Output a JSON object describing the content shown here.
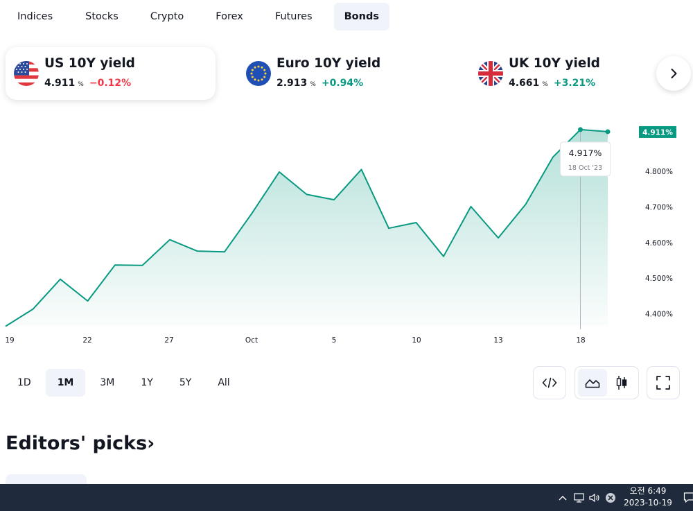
{
  "tabs": [
    "Indices",
    "Stocks",
    "Crypto",
    "Forex",
    "Futures",
    "Bonds"
  ],
  "active_tab": "Bonds",
  "cards": [
    {
      "name": "US 10Y yield",
      "value": "4.911",
      "unit": "%",
      "change": "−0.12%",
      "flag": "us-flag-icon"
    },
    {
      "name": "Euro 10Y yield",
      "value": "2.913",
      "unit": "%",
      "change": "+0.94%",
      "flag": "eu-flag-icon"
    },
    {
      "name": "UK 10Y yield",
      "value": "4.661",
      "unit": "%",
      "change": "+3.21%",
      "flag": "uk-flag-icon"
    }
  ],
  "colors": {
    "accent": "#089981",
    "negative": "#f23645",
    "positive": "#089981",
    "taskbar": "#1f2a3c"
  },
  "chart_data": {
    "type": "area",
    "x_tick_labels": [
      "19",
      "22",
      "27",
      "Oct",
      "5",
      "10",
      "13",
      "18"
    ],
    "y_tick_labels": [
      "4.800%",
      "4.700%",
      "4.600%",
      "4.500%",
      "4.400%"
    ],
    "ylim": [
      4.36,
      4.94
    ],
    "y_ticks": [
      4.8,
      4.7,
      4.6,
      4.5,
      4.4
    ],
    "series": [
      {
        "values": [
          4.365,
          4.413,
          4.497,
          4.436,
          4.537,
          4.536,
          4.608,
          4.576,
          4.574,
          4.682,
          4.798,
          4.735,
          4.72,
          4.805,
          4.64,
          4.656,
          4.561,
          4.701,
          4.613,
          4.707,
          4.84,
          4.917,
          4.911
        ]
      }
    ],
    "last_value_label": "4.911%",
    "tooltip": {
      "value": "4.917%",
      "date": "18 Oct '23"
    }
  },
  "ranges": [
    "1D",
    "1M",
    "3M",
    "1Y",
    "5Y",
    "All"
  ],
  "active_range": "1M",
  "tools": {
    "embed": "code-icon",
    "area": "area-chart-icon",
    "candles": "candlestick-icon",
    "fullscreen": "fullscreen-icon"
  },
  "editors_heading": "Editors' picks",
  "editors_arrow": "›",
  "taskbar": {
    "time": "오전 6:49",
    "date": "2023-10-19"
  }
}
